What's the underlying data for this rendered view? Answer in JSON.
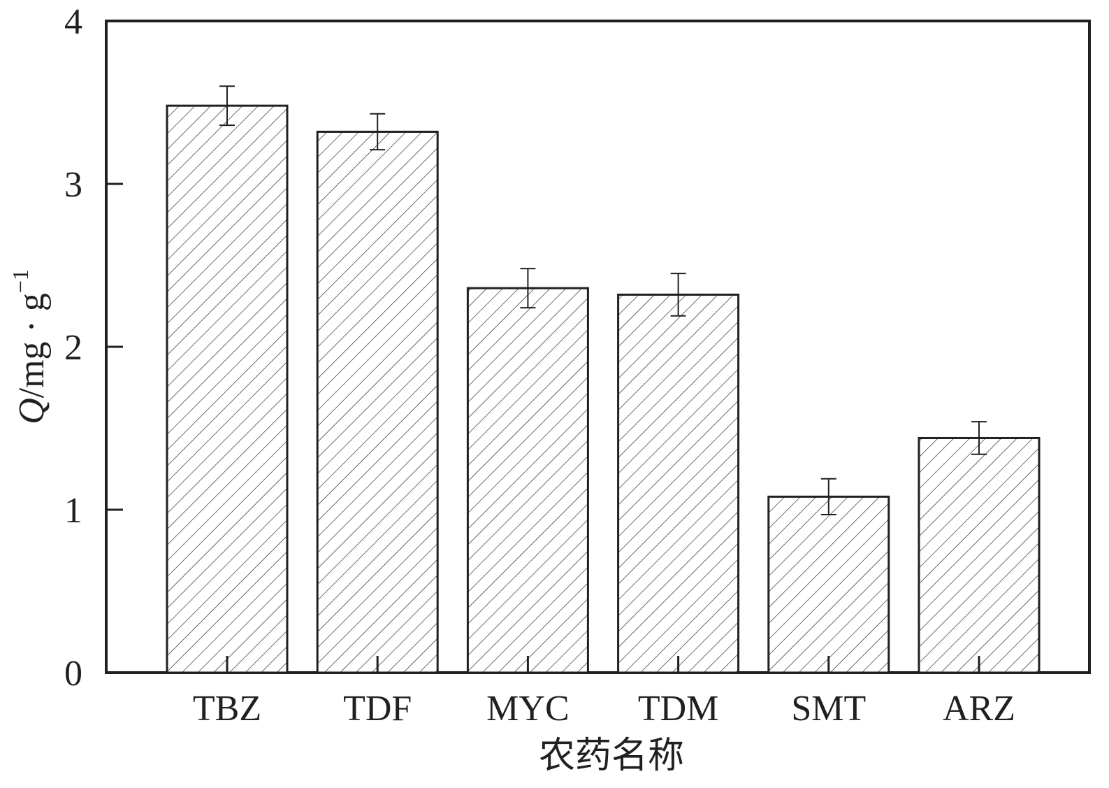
{
  "chart_data": {
    "type": "bar",
    "categories": [
      "TBZ",
      "TDF",
      "MYC",
      "TDM",
      "SMT",
      "ARZ"
    ],
    "values": [
      3.48,
      3.32,
      2.36,
      2.32,
      1.08,
      1.44
    ],
    "errors": [
      0.12,
      0.11,
      0.12,
      0.13,
      0.11,
      0.1
    ],
    "xlabel": "农药名称",
    "ylabel": {
      "symbol": "Q",
      "unit": "/mg · g",
      "exponent": "−1"
    },
    "ylim": [
      0,
      4
    ],
    "yticks": [
      "0",
      "1",
      "2",
      "3",
      "4"
    ],
    "fill": "diagonal hatch",
    "grid": false,
    "legend": "none",
    "colors": {
      "ink": "#231f20",
      "background": "#ffffff"
    }
  }
}
